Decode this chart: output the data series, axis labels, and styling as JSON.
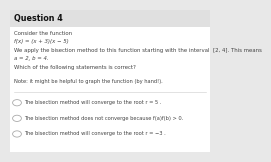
{
  "title": "Question 4",
  "line1": "Consider the function",
  "line2": "f(x) = (x + 3)(x − 5)",
  "line3a": "We apply the bisection method to this function starting with the interval  [2, 4]. This means",
  "line3b": "a = 2, b = 4.",
  "line4": "Which of the following statements is correct?",
  "note": "Note: it might be helpful to graph the function (by hand!).",
  "options": [
    "The bisection method will converge to the root r = 5 .",
    "The bisection method does not converge because f(a)f(b) > 0.",
    "The bisection method will converge to the root r = −3 ."
  ],
  "bg_color": "#e8e8e8",
  "content_bg": "#ffffff",
  "title_bg": "#e0e0e0",
  "text_color": "#444444",
  "title_color": "#111111",
  "title_fontsize": 5.8,
  "body_fontsize": 3.9,
  "option_fontsize": 3.7,
  "circle_color": "#aaaaaa",
  "title_bar_height": 0.12
}
